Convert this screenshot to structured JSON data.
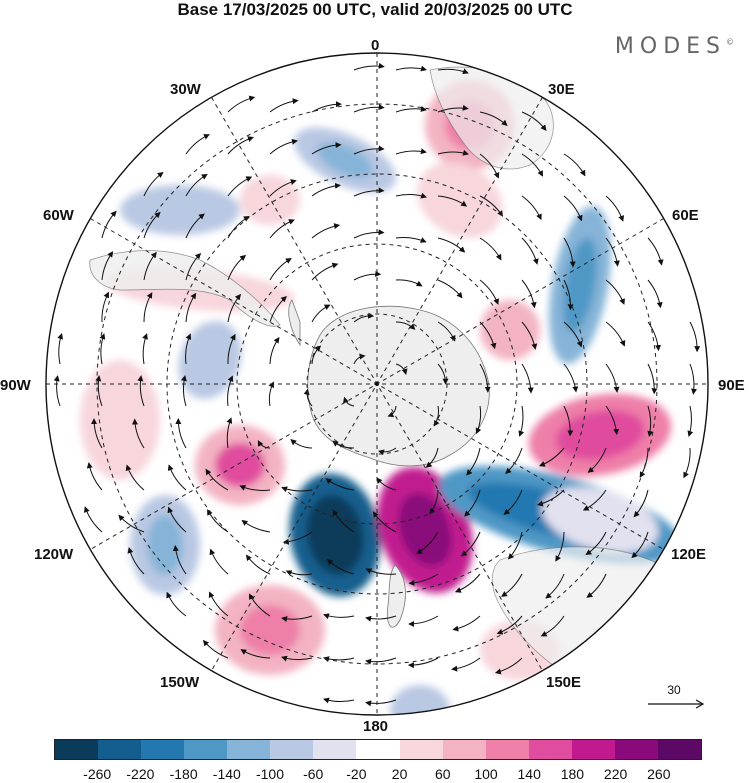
{
  "header": {
    "title": "Base 17/03/2025 00 UTC, valid 20/03/2025 00 UTC"
  },
  "brand": {
    "name": "MODES",
    "mark": "©"
  },
  "map": {
    "projection": "south polar stereographic",
    "longitude_labels": [
      "0",
      "30E",
      "60E",
      "90E",
      "120E",
      "150E",
      "180",
      "150W",
      "120W",
      "90W",
      "60W",
      "30W"
    ],
    "continent_color": "#eeeeee",
    "vector_color": "#111111"
  },
  "reference_vector": {
    "value": "30"
  },
  "colorbar": {
    "colors": [
      "#0b3b5a",
      "#135e8e",
      "#2478b0",
      "#4f98c6",
      "#86b4d8",
      "#b9c8e3",
      "#e2e1ef",
      "#ffffff",
      "#f7d6dc",
      "#f3b3c2",
      "#ee7fa8",
      "#e04c9e",
      "#c11a8f",
      "#8a0a7b",
      "#5c0865"
    ],
    "tick_labels": [
      "-260",
      "-220",
      "-180",
      "-140",
      "-100",
      "-60",
      "-20",
      "20",
      "60",
      "100",
      "140",
      "180",
      "220",
      "260"
    ]
  }
}
